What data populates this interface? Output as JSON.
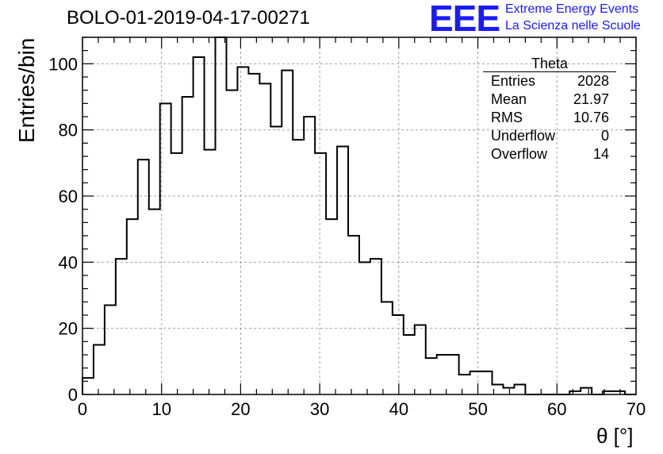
{
  "title": "BOLO-01-2019-04-17-00271",
  "logo": {
    "mark": "EEE",
    "line1": "Extreme Energy Events",
    "line2": "La Scienza nelle Scuole",
    "color": "#1a1aff"
  },
  "stats": {
    "title": "Theta",
    "rows": [
      {
        "label": "Entries",
        "value": "2028"
      },
      {
        "label": "Mean",
        "value": "21.97"
      },
      {
        "label": "RMS",
        "value": "10.76"
      },
      {
        "label": "Underflow",
        "value": "0"
      },
      {
        "label": "Overflow",
        "value": "14"
      }
    ]
  },
  "chart_data": {
    "type": "bar",
    "style": "step-histogram",
    "xlabel": "θ [°]",
    "ylabel": "Entries/bin",
    "xlim": [
      0,
      70
    ],
    "ylim": [
      0,
      108
    ],
    "xticks": [
      0,
      10,
      20,
      30,
      40,
      50,
      60,
      70
    ],
    "yticks": [
      0,
      20,
      40,
      60,
      80,
      100
    ],
    "grid": true,
    "bin_width": 1.4,
    "bin_edges_start": 0,
    "values": [
      5,
      15,
      27,
      41,
      53,
      71,
      56,
      88,
      73,
      90,
      102,
      74,
      108,
      92,
      99,
      97,
      94,
      81,
      98,
      77,
      84,
      73,
      53,
      75,
      48,
      40,
      41,
      28,
      24,
      18,
      21,
      11,
      12,
      12,
      6,
      7,
      7,
      3,
      2,
      3,
      0,
      0,
      0,
      0,
      1,
      2,
      0,
      1,
      1,
      0
    ],
    "line_color": "#000000"
  }
}
